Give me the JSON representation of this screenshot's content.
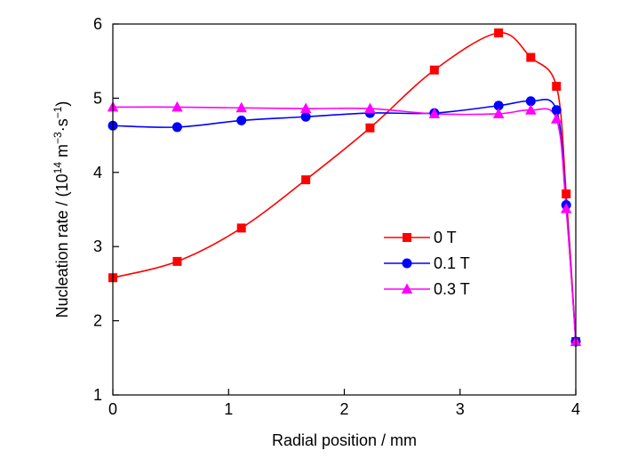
{
  "chart_data": {
    "type": "line",
    "xlabel": "Radial position / mm",
    "ylabel": {
      "prefix": "Nucleation rate / (10",
      "exp1": "14",
      "mid1": " m",
      "exp2": "−3",
      "mid2": "·s",
      "exp3": "−1",
      "suffix": ")"
    },
    "xlim": [
      0,
      4
    ],
    "ylim": [
      1,
      6
    ],
    "xticks": [
      "0",
      "1",
      "2",
      "3",
      "4"
    ],
    "yticks": [
      "1",
      "2",
      "3",
      "4",
      "5",
      "6"
    ],
    "grid": false,
    "legend_position": "center-right",
    "series": [
      {
        "name": "0 T",
        "color": "#ff0000",
        "marker": "square",
        "x": [
          0,
          0.556,
          1.111,
          1.667,
          2.222,
          2.778,
          3.333,
          3.611,
          3.833,
          3.917,
          4.0
        ],
        "y": [
          2.58,
          2.8,
          3.25,
          3.9,
          4.6,
          5.38,
          5.88,
          5.55,
          5.16,
          3.71,
          1.72
        ]
      },
      {
        "name": "0.1 T",
        "color": "#0000ff",
        "marker": "circle",
        "x": [
          0,
          0.556,
          1.111,
          1.667,
          2.222,
          2.778,
          3.333,
          3.611,
          3.833,
          3.917,
          4.0
        ],
        "y": [
          4.63,
          4.61,
          4.7,
          4.75,
          4.8,
          4.8,
          4.9,
          4.96,
          4.84,
          3.56,
          1.72
        ]
      },
      {
        "name": "0.3 T",
        "color": "#ff00ff",
        "marker": "triangle",
        "x": [
          0,
          0.556,
          1.111,
          1.667,
          2.222,
          2.778,
          3.333,
          3.611,
          3.833,
          3.917,
          4.0
        ],
        "y": [
          4.88,
          4.88,
          4.87,
          4.86,
          4.86,
          4.79,
          4.79,
          4.84,
          4.72,
          3.51,
          1.72
        ]
      }
    ]
  }
}
